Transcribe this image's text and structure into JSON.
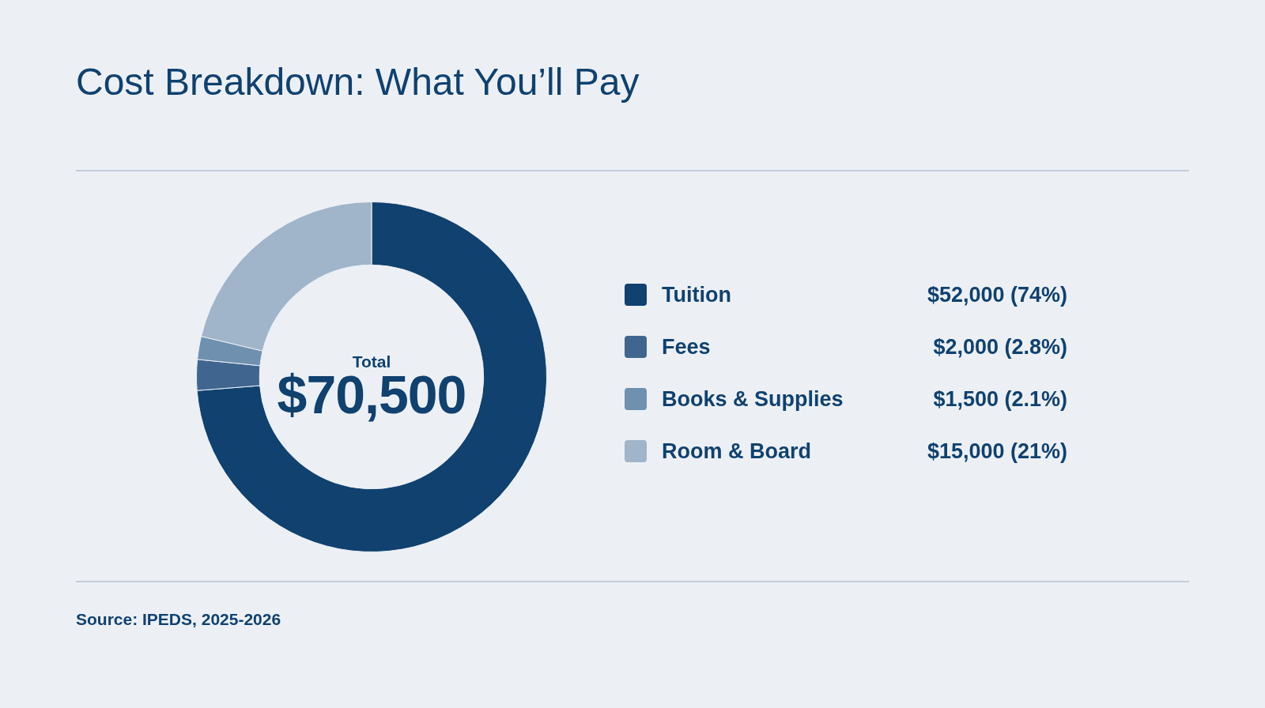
{
  "chart_data": {
    "type": "donut",
    "title": "Cost Breakdown: What You’ll Pay",
    "categories": [
      "Tuition",
      "Fees",
      "Books & Supplies",
      "Room & Board"
    ],
    "values": [
      52000,
      2000,
      1500,
      15000
    ],
    "colors": [
      "#10416f",
      "#40668f",
      "#7090b0",
      "#a0b4ca"
    ],
    "value_labels": [
      "$52,000 (74%)",
      "$2,000 (2.8%)",
      "$1,500 (2.1%)",
      "$15,000 (21%)"
    ],
    "legend": "right",
    "annotations": [
      "Total",
      "$70,500",
      "Source: IPEDS, 2025-2026"
    ]
  }
}
